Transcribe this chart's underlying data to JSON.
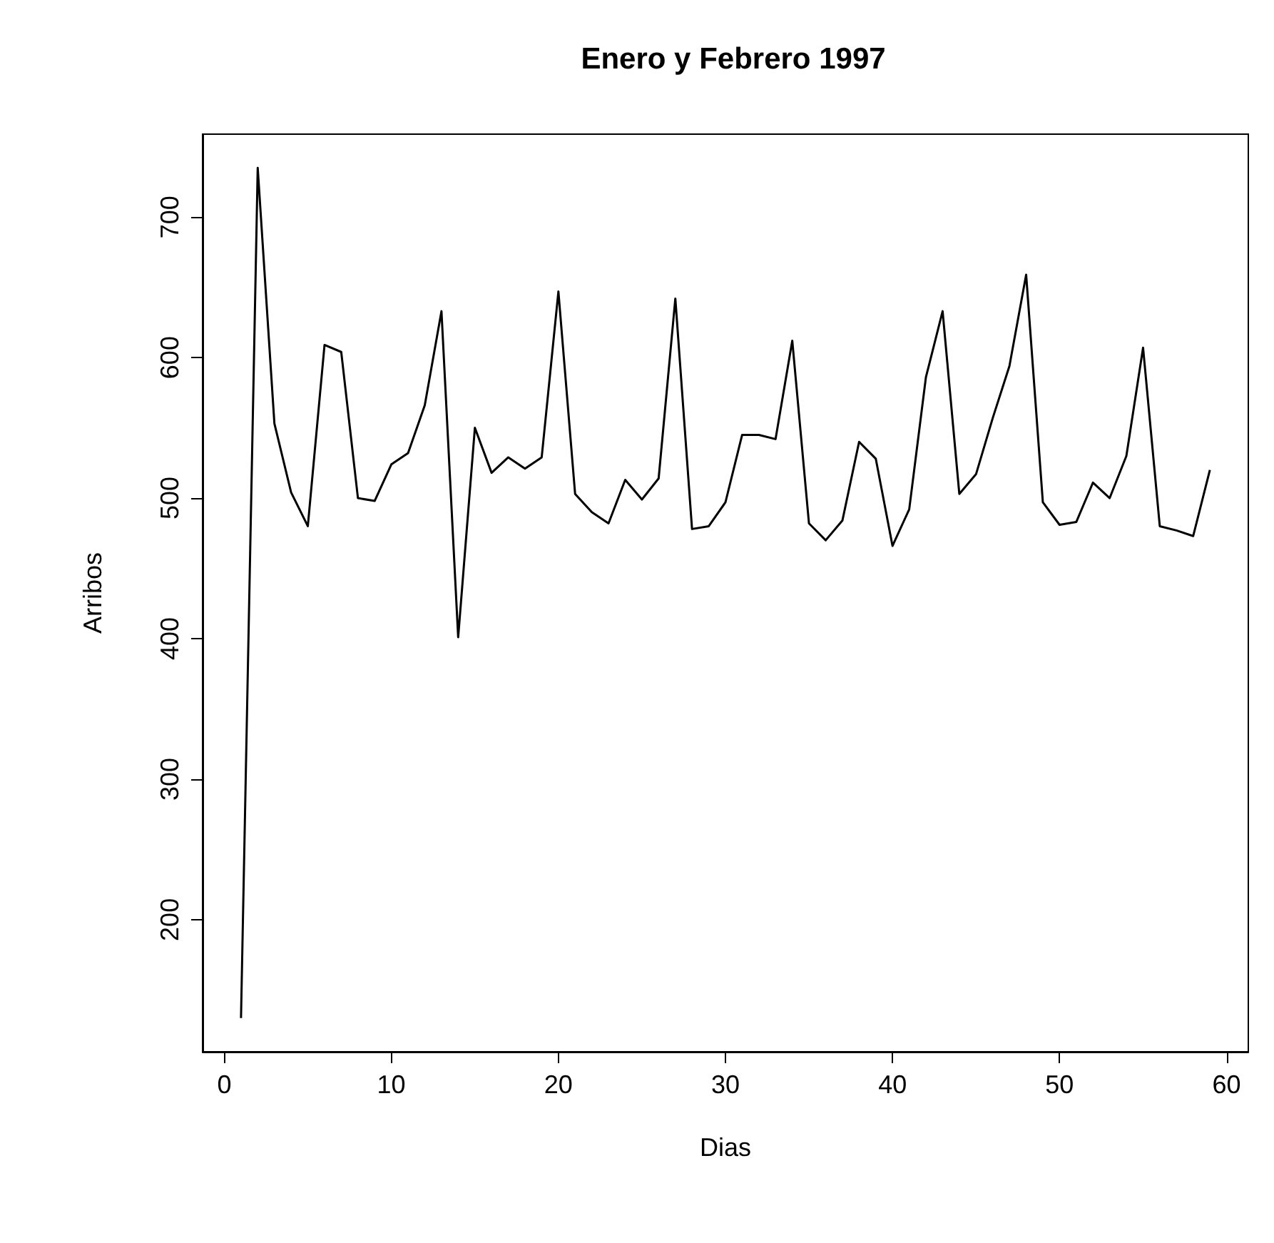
{
  "chart_data": {
    "type": "line",
    "title": "Enero y Febrero 1997",
    "xlabel": "Dias",
    "ylabel": "Arribos",
    "x": [
      1,
      2,
      3,
      4,
      5,
      6,
      7,
      8,
      9,
      10,
      11,
      12,
      13,
      14,
      15,
      16,
      17,
      18,
      19,
      20,
      21,
      22,
      23,
      24,
      25,
      26,
      27,
      28,
      29,
      30,
      31,
      32,
      33,
      34,
      35,
      36,
      37,
      38,
      39,
      40,
      41,
      42,
      43,
      44,
      45,
      46,
      47,
      48,
      49,
      50,
      51,
      52,
      53,
      54,
      55,
      56,
      57,
      58,
      59
    ],
    "series": [
      {
        "color": "#000000",
        "values": [
          130,
          735,
          553,
          504,
          480,
          609,
          604,
          500,
          498,
          524,
          532,
          566,
          633,
          401,
          550,
          518,
          529,
          521,
          529,
          647,
          503,
          490,
          482,
          513,
          499,
          514,
          642,
          478,
          480,
          497,
          545,
          545,
          542,
          612,
          482,
          470,
          484,
          540,
          528,
          466,
          492,
          586,
          633,
          503,
          517,
          557,
          594,
          659,
          497,
          481,
          483,
          511,
          500,
          530,
          607,
          480,
          477,
          473,
          520
        ]
      }
    ],
    "xlim": [
      -1.3,
      61.3
    ],
    "ylim": [
      106,
      759
    ],
    "xticks": [
      0,
      10,
      20,
      30,
      40,
      50,
      60
    ],
    "yticks": [
      200,
      300,
      400,
      500,
      600,
      700
    ],
    "marker": "none",
    "line_style": "solid"
  }
}
